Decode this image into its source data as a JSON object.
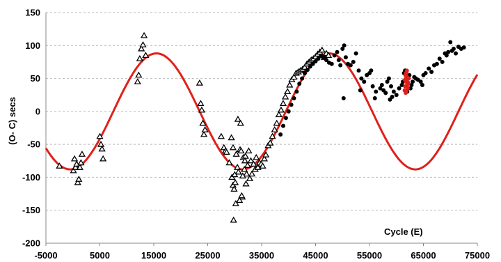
{
  "chart_data": {
    "type": "scatter",
    "title": "",
    "xlabel": "Cycle (E)",
    "ylabel": "(O- C) secs",
    "xlim": [
      -5000,
      75000
    ],
    "ylim": [
      -200,
      150
    ],
    "xticks": [
      -5000,
      5000,
      15000,
      25000,
      35000,
      45000,
      55000,
      65000,
      75000
    ],
    "yticks": [
      -200,
      -150,
      -100,
      -50,
      0,
      50,
      100,
      150
    ],
    "xtick_labels": [
      "-5000",
      "5000",
      "15000",
      "25000",
      "35000",
      "45000",
      "55000",
      "65000",
      "75000"
    ],
    "ytick_labels": [
      "-200",
      "-150",
      "-100",
      "-50",
      "0",
      "50",
      "100",
      "150"
    ],
    "grid": "horizontal-dashed",
    "colors": {
      "fit": "#e0201b",
      "triangles": "#000000",
      "circles": "#000000",
      "red_points": "#e0201b"
    },
    "series": [
      {
        "marker": "triangle-open",
        "color": "#000000",
        "x": [
          -2500,
          100,
          300,
          500,
          700,
          900,
          1100,
          1300,
          1500,
          1700,
          5000,
          5200,
          5400,
          5600,
          12000,
          12200,
          12400,
          12700,
          13000,
          13200,
          13500,
          23500,
          23700,
          23900,
          24100,
          24300,
          24500,
          27500,
          28000,
          28300,
          28500,
          29000,
          29500,
          29700,
          29900,
          30100,
          30300,
          30500,
          30700,
          31000,
          31200,
          31400,
          31600,
          31800,
          32000,
          32200,
          32400,
          32600,
          32800,
          33000,
          33200,
          33500,
          33800,
          34000,
          34300,
          34600,
          34900,
          35200,
          35500,
          35800,
          36200,
          36600,
          37000,
          37400,
          37800,
          38200,
          38600,
          39000,
          39400,
          39800,
          40200,
          40600,
          41000,
          41400,
          41800,
          42200,
          42600,
          43000,
          43400,
          43800,
          44200,
          44600,
          45000,
          45400,
          45800,
          46200,
          46600,
          47000,
          47400
        ],
        "y": [
          -83,
          -90,
          -72,
          -85,
          -80,
          -108,
          -103,
          -85,
          -78,
          -65,
          -38,
          -50,
          -57,
          -72,
          45,
          55,
          80,
          95,
          101,
          115,
          85,
          43,
          12,
          2,
          -18,
          -35,
          -28,
          -38,
          -55,
          -60,
          -62,
          -78,
          -100,
          -112,
          -118,
          -108,
          -65,
          -85,
          -92,
          -58,
          -60,
          -130,
          -70,
          -88,
          -68,
          -95,
          -82,
          -60,
          -102,
          -75,
          -95,
          -80,
          -88,
          -70,
          -85,
          -78,
          -80,
          -83,
          -72,
          -66,
          -52,
          -48,
          -38,
          -28,
          -18,
          -5,
          2,
          12,
          22,
          30,
          40,
          48,
          52,
          58,
          60,
          62,
          64,
          67,
          72,
          75,
          78,
          80,
          83,
          87,
          90,
          93,
          82,
          88,
          85
        ],
        "extra": [
          [
            29800,
            -165
          ],
          [
            30200,
            -140
          ],
          [
            30900,
            -135
          ],
          [
            31300,
            -128
          ],
          [
            30600,
            -12
          ],
          [
            31100,
            -18
          ],
          [
            29400,
            -40
          ],
          [
            29700,
            -55
          ],
          [
            30000,
            -96
          ],
          [
            31500,
            -98
          ],
          [
            32100,
            -110
          ],
          [
            31900,
            -75
          ]
        ]
      },
      {
        "marker": "circle-filled",
        "color": "#000000",
        "x": [
          38500,
          39000,
          39500,
          40000,
          40500,
          41000,
          41500,
          42000,
          42500,
          43000,
          43500,
          44000,
          44500,
          45000,
          45500,
          46000,
          46500,
          47000,
          47500,
          48000,
          48500,
          49000,
          49300,
          49600,
          50000,
          50300,
          50600,
          51000,
          51500,
          52000,
          52500,
          53000,
          53500,
          54000,
          54500,
          55000,
          55300,
          55600,
          56000,
          57000,
          57300,
          57600,
          58000,
          58300,
          58600,
          59000,
          59500,
          60000,
          60500,
          61000,
          61200,
          61400,
          61600,
          61800,
          62000,
          62200,
          62400,
          62600,
          62800,
          63000,
          63300,
          63600,
          64000,
          64500,
          65000,
          66000,
          66500,
          67000,
          67500,
          68000,
          68500,
          69000,
          69300,
          69600,
          70000,
          70300,
          70600,
          71000,
          71500,
          72000,
          72500
        ],
        "y": [
          -35,
          -22,
          -10,
          0,
          10,
          20,
          30,
          42,
          50,
          58,
          63,
          68,
          72,
          76,
          80,
          84,
          82,
          78,
          74,
          72,
          85,
          90,
          78,
          70,
          95,
          100,
          82,
          72,
          70,
          75,
          88,
          62,
          50,
          45,
          55,
          58,
          62,
          38,
          20,
          35,
          40,
          32,
          28,
          45,
          50,
          38,
          30,
          25,
          35,
          40,
          45,
          58,
          62,
          38,
          30,
          50,
          55,
          35,
          40,
          45,
          52,
          50,
          48,
          45,
          55,
          65,
          60,
          70,
          72,
          80,
          75,
          88,
          85,
          90,
          105,
          92,
          95,
          88,
          98,
          95,
          97
        ],
        "extra": [
          [
            50200,
            20
          ],
          [
            53300,
            32
          ],
          [
            56200,
            30
          ],
          [
            58800,
            18
          ],
          [
            59200,
            22
          ],
          [
            64800,
            40
          ],
          [
            65400,
            58
          ]
        ]
      },
      {
        "marker": "circle-filled",
        "color": "#e0201b",
        "x": [
          61500,
          61600,
          61700,
          61800,
          61900,
          62000,
          62100,
          62200,
          62300,
          61650,
          61750,
          61850,
          61950,
          62050,
          62150,
          61550,
          61700,
          61900,
          62000
        ],
        "y": [
          32,
          38,
          45,
          52,
          48,
          40,
          35,
          42,
          50,
          55,
          58,
          30,
          62,
          36,
          44,
          48,
          28,
          60,
          52
        ]
      }
    ],
    "fit_curve": {
      "type": "sine",
      "amplitude": 88,
      "period": 32000,
      "phase_peak_x": 15500,
      "offset": 0,
      "color": "#e0201b"
    }
  }
}
